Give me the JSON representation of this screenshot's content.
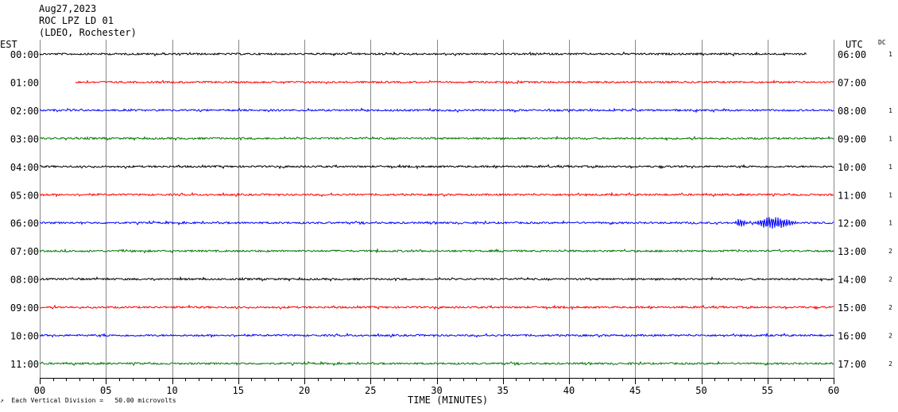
{
  "header": {
    "date": "Aug27,2023",
    "station": "ROC LPZ LD 01",
    "network": "(LDEO, Rochester)"
  },
  "timezones": {
    "left": "EST",
    "right": "UTC",
    "dc": "DC"
  },
  "footer": "↗  Each Vertical Division =   50.00 microvolts",
  "chart_data": {
    "type": "line",
    "title": "",
    "xlabel": "TIME (MINUTES)",
    "xlim": [
      0,
      60
    ],
    "xticks": [
      "00",
      "05",
      "10",
      "15",
      "20",
      "25",
      "30",
      "35",
      "40",
      "45",
      "50",
      "55",
      "60"
    ],
    "grid": true,
    "colors": [
      "#000000",
      "#ff0000",
      "#0000ff",
      "#007700"
    ],
    "rows": [
      {
        "est": "00:00",
        "utc": "06:00",
        "dc": "1",
        "start": 0,
        "end": 58
      },
      {
        "est": "01:00",
        "utc": "07:00",
        "dc": "",
        "start": 2.7,
        "end": 60
      },
      {
        "est": "02:00",
        "utc": "08:00",
        "dc": "1",
        "start": 0,
        "end": 60
      },
      {
        "est": "03:00",
        "utc": "09:00",
        "dc": "1",
        "start": 0,
        "end": 60
      },
      {
        "est": "04:00",
        "utc": "10:00",
        "dc": "1",
        "start": 0,
        "end": 60
      },
      {
        "est": "05:00",
        "utc": "11:00",
        "dc": "1",
        "start": 0,
        "end": 60
      },
      {
        "est": "06:00",
        "utc": "12:00",
        "dc": "1",
        "start": 0,
        "end": 60,
        "events": [
          {
            "start": 52.5,
            "end": 53.6,
            "amp": 6
          },
          {
            "start": 54.0,
            "end": 57.5,
            "amp": 9
          }
        ]
      },
      {
        "est": "07:00",
        "utc": "13:00",
        "dc": "2",
        "start": 0,
        "end": 60
      },
      {
        "est": "08:00",
        "utc": "14:00",
        "dc": "2",
        "start": 0,
        "end": 60
      },
      {
        "est": "09:00",
        "utc": "15:00",
        "dc": "2",
        "start": 0,
        "end": 60
      },
      {
        "est": "10:00",
        "utc": "16:00",
        "dc": "2",
        "start": 0,
        "end": 60
      },
      {
        "est": "11:00",
        "utc": "17:00",
        "dc": "2",
        "start": 0,
        "end": 60
      }
    ]
  }
}
